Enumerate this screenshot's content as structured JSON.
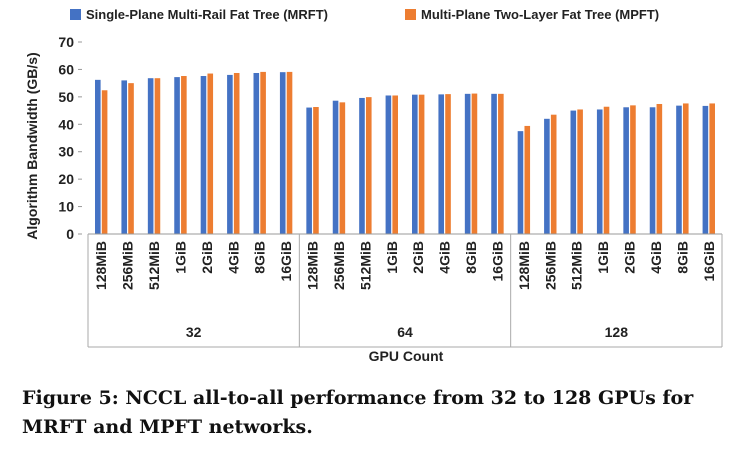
{
  "chart_data": {
    "type": "bar",
    "title": "",
    "xlabel": "GPU Count",
    "ylabel": "Algorithm Bandwidth (GB/s)",
    "ylim": [
      0,
      70
    ],
    "yticks": [
      "0",
      "10",
      "20",
      "30",
      "40",
      "50",
      "60",
      "70"
    ],
    "grid": false,
    "legend_position": "top",
    "groups": [
      "32",
      "64",
      "128"
    ],
    "categories": [
      "128MiB",
      "256MiB",
      "512MiB",
      "1GiB",
      "2GiB",
      "4GiB",
      "8GiB",
      "16GiB"
    ],
    "series": [
      {
        "name": "Single-Plane Multi-Rail Fat Tree (MRFT)",
        "color": "#4472C4",
        "values": [
          [
            56.2,
            56.0,
            56.8,
            57.2,
            57.6,
            58.0,
            58.7,
            59.0
          ],
          [
            46.1,
            48.6,
            49.6,
            50.5,
            50.8,
            50.9,
            51.1,
            51.1
          ],
          [
            37.5,
            42.0,
            45.0,
            45.4,
            46.2,
            46.2,
            46.8,
            46.7
          ]
        ]
      },
      {
        "name": "Multi-Plane Two-Layer Fat Tree (MPFT)",
        "color": "#ED7D31",
        "values": [
          [
            52.4,
            55.0,
            56.8,
            57.6,
            58.5,
            58.7,
            59.1,
            59.1
          ],
          [
            46.3,
            48.0,
            49.9,
            50.5,
            50.8,
            51.0,
            51.2,
            51.1
          ],
          [
            39.4,
            43.5,
            45.4,
            46.4,
            46.9,
            47.4,
            47.6,
            47.6
          ]
        ]
      }
    ]
  },
  "caption": "Figure 5: NCCL all-to-all performance from 32 to 128 GPUs for MRFT and MPFT networks."
}
